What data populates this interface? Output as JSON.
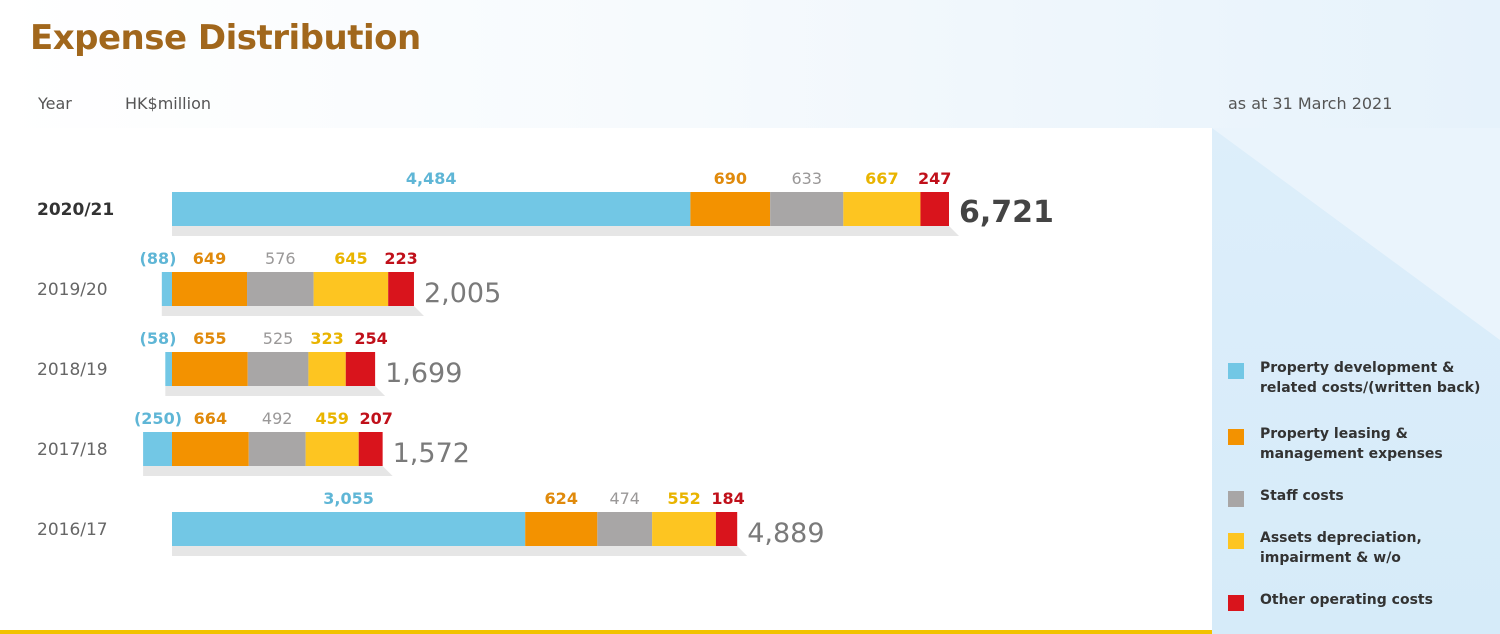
{
  "title": "Expense Distribution",
  "header": {
    "year_label": "Year",
    "unit_label": "HK$million",
    "as_at": "as at 31 March 2021"
  },
  "colors": {
    "property_development": "#72c7e5",
    "property_leasing": "#f39200",
    "staff_costs": "#a8a6a6",
    "assets_depreciation": "#fdc521",
    "other_operating": "#d9141c",
    "title": "#a1671c",
    "accent_line": "#f2c200"
  },
  "legend": [
    {
      "label": "Property development & related costs/(written back)",
      "color": "#72c7e5"
    },
    {
      "label": "Property leasing & management expenses",
      "color": "#f39200"
    },
    {
      "label": "Staff costs",
      "color": "#a8a6a6"
    },
    {
      "label": "Assets depreciation, impairment & w/o",
      "color": "#fdc521"
    },
    {
      "label": "Other operating costs",
      "color": "#d9141c"
    }
  ],
  "chart_data": {
    "type": "bar",
    "orientation": "horizontal",
    "stacked": true,
    "categories": [
      "2020/21",
      "2019/20",
      "2018/19",
      "2017/18",
      "2016/17"
    ],
    "series": [
      {
        "name": "Property development & related costs/(written back)",
        "values": [
          4484,
          -88,
          -58,
          -250,
          3055
        ],
        "labels": [
          "4,484",
          "(88)",
          "(58)",
          "(250)",
          "3,055"
        ]
      },
      {
        "name": "Property leasing & management expenses",
        "values": [
          690,
          649,
          655,
          664,
          624
        ],
        "labels": [
          "690",
          "649",
          "655",
          "664",
          "624"
        ]
      },
      {
        "name": "Staff costs",
        "values": [
          633,
          576,
          525,
          492,
          474
        ],
        "labels": [
          "633",
          "576",
          "525",
          "492",
          "474"
        ]
      },
      {
        "name": "Assets depreciation, impairment & w/o",
        "values": [
          667,
          645,
          323,
          459,
          552
        ],
        "labels": [
          "667",
          "645",
          "323",
          "459",
          "552"
        ]
      },
      {
        "name": "Other operating costs",
        "values": [
          247,
          223,
          254,
          207,
          184
        ],
        "labels": [
          "247",
          "223",
          "254",
          "207",
          "184"
        ]
      }
    ],
    "totals": [
      6721,
      2005,
      1699,
      1572,
      4889
    ],
    "total_labels": [
      "6,721",
      "2,005",
      "1,699",
      "1,572",
      "4,889"
    ],
    "highlight_category": "2020/21",
    "xlabel": "",
    "ylabel": "Year",
    "unit": "HK$million",
    "grid": false,
    "legend_position": "right"
  }
}
